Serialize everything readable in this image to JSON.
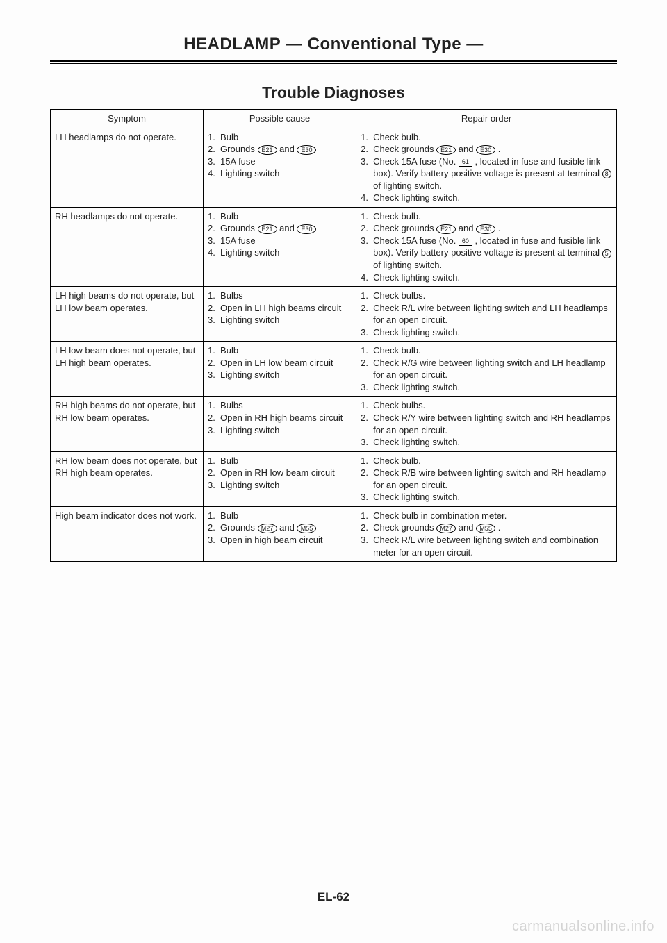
{
  "header": {
    "title": "HEADLAMP — Conventional Type —"
  },
  "section": {
    "title": "Trouble Diagnoses"
  },
  "table": {
    "headers": {
      "symptom": "Symptom",
      "cause": "Possible cause",
      "repair": "Repair order"
    },
    "rows": [
      {
        "symptom": "LH headlamps do not operate.",
        "causes": [
          {
            "n": "1.",
            "t": "Bulb"
          },
          {
            "n": "2.",
            "html": "Grounds <span class='oval'>E21</span> and <span class='oval'>E30</span>"
          },
          {
            "n": "3.",
            "t": "15A fuse"
          },
          {
            "n": "4.",
            "t": "Lighting switch"
          }
        ],
        "repairs": [
          {
            "n": "1.",
            "t": "Check bulb."
          },
          {
            "n": "2.",
            "html": "Check grounds <span class='oval'>E21</span> and <span class='oval'>E30</span> ."
          },
          {
            "n": "3.",
            "html": "Check 15A fuse (No. <span class='fusebox'>61</span> , located in fuse and fusible link box). Verify battery positive voltage is present at terminal <span class='circ'>8</span> of lighting switch."
          },
          {
            "n": "4.",
            "t": "Check lighting switch."
          }
        ]
      },
      {
        "symptom": "RH headlamps do not operate.",
        "causes": [
          {
            "n": "1.",
            "t": "Bulb"
          },
          {
            "n": "2.",
            "html": "Grounds <span class='oval'>E21</span> and <span class='oval'>E30</span>"
          },
          {
            "n": "3.",
            "t": "15A fuse"
          },
          {
            "n": "4.",
            "t": "Lighting switch"
          }
        ],
        "repairs": [
          {
            "n": "1.",
            "t": "Check bulb."
          },
          {
            "n": "2.",
            "html": "Check grounds <span class='oval'>E21</span> and <span class='oval'>E30</span> ."
          },
          {
            "n": "3.",
            "html": "Check 15A fuse (No. <span class='fusebox'>60</span> , located in fuse and fusible link box). Verify battery positive voltage is present at terminal <span class='circ'>5</span> of lighting switch."
          },
          {
            "n": "4.",
            "t": "Check lighting switch."
          }
        ]
      },
      {
        "symptom": "LH high beams do not operate, but LH low beam operates.",
        "causes": [
          {
            "n": "1.",
            "t": "Bulbs"
          },
          {
            "n": "2.",
            "t": "Open in LH high beams circuit"
          },
          {
            "n": "3.",
            "t": "Lighting switch"
          }
        ],
        "repairs": [
          {
            "n": "1.",
            "t": "Check bulbs."
          },
          {
            "n": "2.",
            "t": "Check R/L wire between lighting switch and LH headlamps for an open circuit."
          },
          {
            "n": "3.",
            "t": "Check lighting switch."
          }
        ]
      },
      {
        "symptom": "LH low beam does not operate, but LH high beam operates.",
        "causes": [
          {
            "n": "1.",
            "t": "Bulb"
          },
          {
            "n": "2.",
            "t": "Open in LH low beam circuit"
          },
          {
            "n": "3.",
            "t": "Lighting switch"
          }
        ],
        "repairs": [
          {
            "n": "1.",
            "t": "Check bulb."
          },
          {
            "n": "2.",
            "t": "Check R/G wire between lighting switch and LH headlamp for an open circuit."
          },
          {
            "n": "3.",
            "t": "Check lighting switch."
          }
        ]
      },
      {
        "symptom": "RH high beams do not operate, but RH low beam operates.",
        "causes": [
          {
            "n": "1.",
            "t": "Bulbs"
          },
          {
            "n": "2.",
            "t": "Open in RH high beams circuit"
          },
          {
            "n": "3.",
            "t": "Lighting switch"
          }
        ],
        "repairs": [
          {
            "n": "1.",
            "t": "Check bulbs."
          },
          {
            "n": "2.",
            "t": "Check R/Y wire between lighting switch and RH headlamps for an open circuit."
          },
          {
            "n": "3.",
            "t": "Check lighting switch."
          }
        ]
      },
      {
        "symptom": "RH low beam does not operate, but RH high beam operates.",
        "causes": [
          {
            "n": "1.",
            "t": "Bulb"
          },
          {
            "n": "2.",
            "t": "Open in RH low beam circuit"
          },
          {
            "n": "3.",
            "t": "Lighting switch"
          }
        ],
        "repairs": [
          {
            "n": "1.",
            "t": "Check bulb."
          },
          {
            "n": "2.",
            "t": "Check R/B wire between lighting switch and RH headlamp for an open circuit."
          },
          {
            "n": "3.",
            "t": "Check lighting switch."
          }
        ]
      },
      {
        "symptom": "High beam indicator does not work.",
        "causes": [
          {
            "n": "1.",
            "t": "Bulb"
          },
          {
            "n": "2.",
            "html": "Grounds <span class='oval'>M27</span> and <span class='oval'>M55</span>"
          },
          {
            "n": "3.",
            "t": "Open in high beam circuit"
          }
        ],
        "repairs": [
          {
            "n": "1.",
            "t": "Check bulb in combination meter."
          },
          {
            "n": "2.",
            "html": "Check grounds <span class='oval'>M27</span> and <span class='oval'>M55</span> ."
          },
          {
            "n": "3.",
            "t": "Check R/L wire between lighting switch and combination meter for an open circuit."
          }
        ]
      }
    ]
  },
  "footer": {
    "page_num": "EL-62",
    "watermark": "carmanualsonline.info"
  }
}
